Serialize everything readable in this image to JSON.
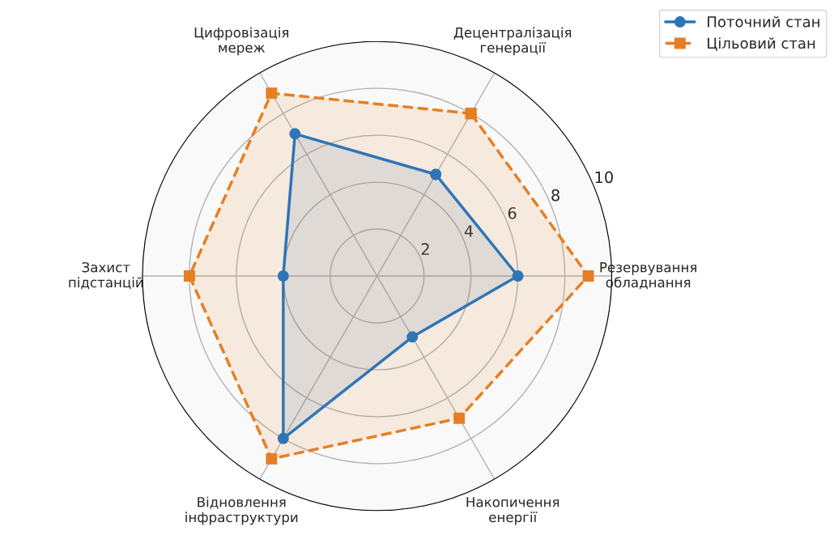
{
  "chart_data": {
    "type": "radar",
    "categories": [
      "Децентралізація\nгенерації",
      "Резервування\nобладнання",
      "Накопичення\nенергії",
      "Відновлення\nінфраструктури",
      "Захист\nпідстанцій",
      "Цифровізація\nмереж"
    ],
    "series": [
      {
        "name": "Поточний стан",
        "color": "#2e75b6",
        "values": [
          5,
          6,
          3,
          8,
          4,
          7
        ],
        "marker": "circle",
        "line_style": "solid"
      },
      {
        "name": "Цільовий стан",
        "color": "#e67e22",
        "values": [
          8,
          9,
          7,
          9,
          8,
          9
        ],
        "marker": "square",
        "line_style": "dashed"
      }
    ],
    "ylim": [
      0,
      10
    ],
    "yticks": [
      2,
      4,
      6,
      8,
      10
    ],
    "grid": true,
    "legend": "top right"
  }
}
